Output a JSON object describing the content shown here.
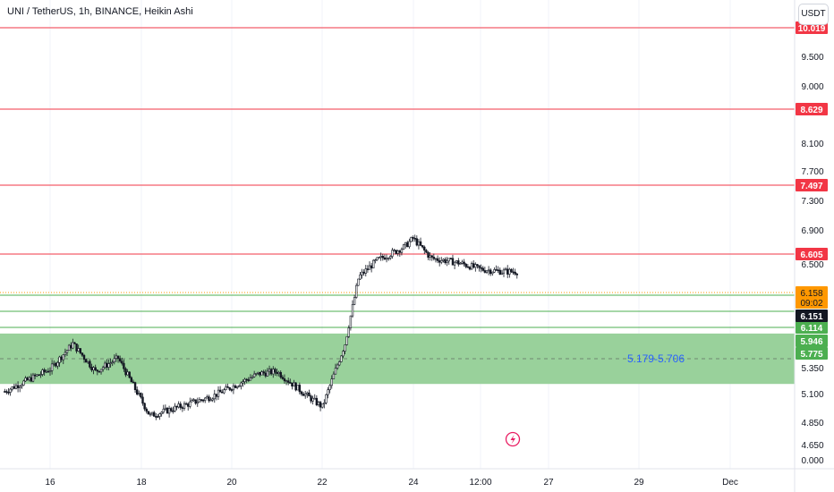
{
  "header": {
    "title": "UNI / TetherUS, 1h, BINANCE, Heikin Ashi",
    "currency": "USDT"
  },
  "colors": {
    "up": "#131722",
    "down": "#131722",
    "resistance": "#f23645",
    "support": "#4caf50",
    "zone_fill": "#93cf96",
    "zone_label": "#2962ff",
    "price_tag": "#ff9800",
    "dark_tag": "#131722",
    "text": "#131722",
    "grid": "#f0f3fa"
  },
  "chart_data": {
    "type": "candlestick",
    "y_axis": {
      "ticks": [
        "10.019",
        "9.500",
        "9.000",
        "8.629",
        "8.100",
        "7.700",
        "7.497",
        "7.300",
        "6.900",
        "6.605",
        "6.500",
        "6.114",
        "5.946",
        "5.775",
        "5.350",
        "5.100",
        "4.850",
        "4.650",
        "0.000"
      ]
    },
    "x_axis": {
      "labels": [
        "16",
        "18",
        "20",
        "22",
        "24",
        "12:00",
        "27",
        "29",
        "Dec"
      ]
    },
    "resistance_lines": [
      {
        "value": 10.019,
        "label": "10.019"
      },
      {
        "value": 8.629,
        "label": "8.629"
      },
      {
        "value": 7.497,
        "label": "7.497"
      },
      {
        "value": 6.605,
        "label": "6.605"
      }
    ],
    "support_lines": [
      {
        "value": 6.114,
        "label": "6.114"
      },
      {
        "value": 5.946,
        "label": "5.946"
      },
      {
        "value": 5.775,
        "label": "5.775"
      }
    ],
    "zone": {
      "low": 5.179,
      "high": 5.706,
      "label": "5.179-5.706"
    },
    "last_price": {
      "value": 6.158,
      "label": "6.158",
      "countdown": "09:02"
    },
    "prev_close": {
      "value": 6.151,
      "label": "6.151"
    },
    "path": [
      {
        "x": 15,
        "v": 5.12
      },
      {
        "x": 16,
        "v": 5.32
      },
      {
        "x": 16.5,
        "v": 5.55
      },
      {
        "x": 17,
        "v": 5.3
      },
      {
        "x": 17.5,
        "v": 5.42
      },
      {
        "x": 18.2,
        "v": 4.9
      },
      {
        "x": 19,
        "v": 5.0
      },
      {
        "x": 19.6,
        "v": 5.08
      },
      {
        "x": 20,
        "v": 5.16
      },
      {
        "x": 20.6,
        "v": 5.28
      },
      {
        "x": 21,
        "v": 5.3
      },
      {
        "x": 21.6,
        "v": 5.1
      },
      {
        "x": 22,
        "v": 4.98
      },
      {
        "x": 22.5,
        "v": 5.55
      },
      {
        "x": 22.8,
        "v": 6.15
      },
      {
        "x": 23.2,
        "v": 6.3
      },
      {
        "x": 23.8,
        "v": 6.42
      },
      {
        "x": 24,
        "v": 6.5
      },
      {
        "x": 24.4,
        "v": 6.32
      },
      {
        "x": 25,
        "v": 6.28
      },
      {
        "x": 25.5,
        "v": 6.22
      },
      {
        "x": 26,
        "v": 6.2
      },
      {
        "x": 26.3,
        "v": 6.2
      }
    ]
  }
}
